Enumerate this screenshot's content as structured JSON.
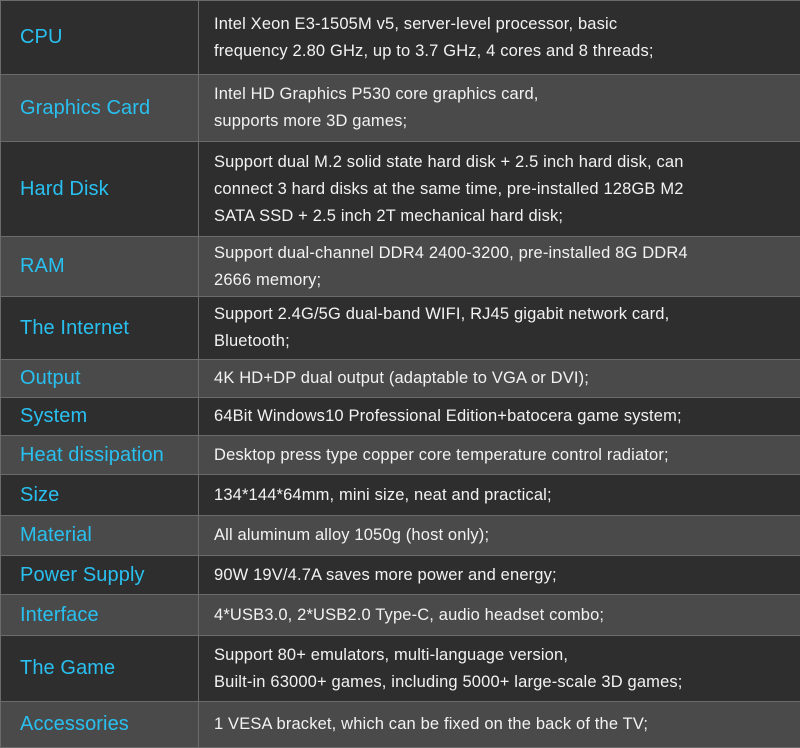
{
  "specs": [
    {
      "label": "CPU",
      "value": "Intel Xeon E3-1505M v5, server-level processor, basic\nfrequency 2.80 GHz, up to 3.7 GHz, 4 cores and 8 threads;"
    },
    {
      "label": "Graphics Card",
      "value": "Intel HD Graphics P530 core graphics card,\nsupports more 3D games;"
    },
    {
      "label": "Hard Disk",
      "value": "Support dual M.2 solid state hard disk + 2.5 inch hard disk, can\nconnect 3 hard disks at the same time, pre-installed 128GB M2\nSATA SSD + 2.5 inch 2T mechanical hard disk;"
    },
    {
      "label": "RAM",
      "value": "Support dual-channel DDR4 2400-3200, pre-installed 8G DDR4\n2666 memory;"
    },
    {
      "label": "The Internet",
      "value": "Support 2.4G/5G dual-band WIFI, RJ45 gigabit network card,\nBluetooth;"
    },
    {
      "label": "Output",
      "value": "4K HD+DP dual output (adaptable to VGA or DVI);"
    },
    {
      "label": "System",
      "value": "64Bit Windows10 Professional Edition+batocera game system;"
    },
    {
      "label": "Heat dissipation",
      "value": "Desktop press type copper core temperature control radiator;"
    },
    {
      "label": "Size",
      "value": "134*144*64mm, mini size, neat and practical;"
    },
    {
      "label": "Material",
      "value": "All aluminum alloy 1050g (host only);"
    },
    {
      "label": "Power Supply",
      "value": "90W 19V/4.7A saves more power and energy;"
    },
    {
      "label": "Interface",
      "value": "4*USB3.0, 2*USB2.0   Type-C, audio headset combo;"
    },
    {
      "label": "The Game",
      "value": "Support 80+ emulators, multi-language version,\nBuilt-in 63000+ games, including 5000+ large-scale 3D games;"
    },
    {
      "label": "Accessories",
      "value": "1 VESA bracket, which can be fixed on the back of the TV;"
    }
  ]
}
